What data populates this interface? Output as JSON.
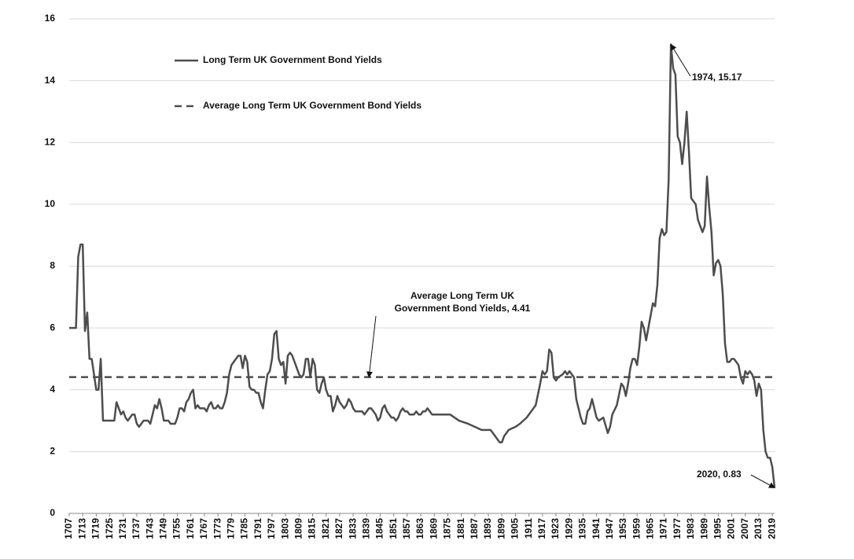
{
  "chart_data": {
    "type": "line",
    "series": [
      {
        "name": "Long Term UK Government Bond Yields",
        "color": "#4d4d4d",
        "x": [
          1707,
          1708,
          1709,
          1710,
          1711,
          1712,
          1713,
          1714,
          1715,
          1716,
          1717,
          1718,
          1719,
          1720,
          1721,
          1722,
          1723,
          1724,
          1725,
          1726,
          1727,
          1728,
          1729,
          1730,
          1731,
          1732,
          1733,
          1734,
          1735,
          1736,
          1737,
          1738,
          1739,
          1740,
          1741,
          1742,
          1743,
          1744,
          1745,
          1746,
          1747,
          1748,
          1749,
          1750,
          1751,
          1752,
          1753,
          1754,
          1755,
          1756,
          1757,
          1758,
          1759,
          1760,
          1761,
          1762,
          1763,
          1764,
          1765,
          1766,
          1767,
          1768,
          1769,
          1770,
          1771,
          1772,
          1773,
          1774,
          1775,
          1776,
          1777,
          1778,
          1779,
          1780,
          1781,
          1782,
          1783,
          1784,
          1785,
          1786,
          1787,
          1788,
          1789,
          1790,
          1791,
          1792,
          1793,
          1794,
          1795,
          1796,
          1797,
          1798,
          1799,
          1800,
          1801,
          1802,
          1803,
          1804,
          1805,
          1806,
          1807,
          1808,
          1809,
          1810,
          1811,
          1812,
          1813,
          1814,
          1815,
          1816,
          1817,
          1818,
          1819,
          1820,
          1821,
          1822,
          1823,
          1824,
          1825,
          1826,
          1827,
          1828,
          1829,
          1830,
          1831,
          1832,
          1833,
          1834,
          1835,
          1836,
          1837,
          1838,
          1839,
          1840,
          1841,
          1842,
          1843,
          1844,
          1845,
          1846,
          1847,
          1848,
          1849,
          1850,
          1851,
          1852,
          1853,
          1854,
          1855,
          1856,
          1857,
          1858,
          1859,
          1860,
          1861,
          1862,
          1863,
          1864,
          1865,
          1866,
          1867,
          1868,
          1869,
          1870,
          1873,
          1876,
          1880,
          1884,
          1887,
          1890,
          1894,
          1897,
          1898,
          1899,
          1900,
          1902,
          1905,
          1907,
          1910,
          1913,
          1914,
          1916,
          1917,
          1918,
          1919,
          1920,
          1921,
          1922,
          1923,
          1924,
          1926,
          1927,
          1928,
          1929,
          1930,
          1931,
          1932,
          1933,
          1934,
          1935,
          1936,
          1937,
          1938,
          1939,
          1940,
          1941,
          1942,
          1944,
          1946,
          1947,
          1948,
          1950,
          1952,
          1953,
          1954,
          1955,
          1956,
          1957,
          1958,
          1959,
          1960,
          1961,
          1962,
          1963,
          1964,
          1965,
          1966,
          1967,
          1968,
          1969,
          1970,
          1971,
          1972,
          1973,
          1974,
          1975,
          1976,
          1977,
          1978,
          1979,
          1980,
          1981,
          1982,
          1983,
          1984,
          1985,
          1986,
          1987,
          1988,
          1989,
          1990,
          1991,
          1992,
          1993,
          1994,
          1995,
          1996,
          1997,
          1998,
          1999,
          2000,
          2001,
          2002,
          2003,
          2004,
          2005,
          2006,
          2007,
          2008,
          2009,
          2010,
          2011,
          2012,
          2013,
          2014,
          2015,
          2016,
          2017,
          2018,
          2019,
          2020
        ],
        "values": [
          6.0,
          6.0,
          6.0,
          6.0,
          8.3,
          8.7,
          8.7,
          5.9,
          6.5,
          5.0,
          5.0,
          4.5,
          4.0,
          4.0,
          5.0,
          3.0,
          3.0,
          3.0,
          3.0,
          3.0,
          3.0,
          3.6,
          3.4,
          3.2,
          3.3,
          3.1,
          3.0,
          3.1,
          3.2,
          3.2,
          2.9,
          2.8,
          2.9,
          3.0,
          3.0,
          3.0,
          2.9,
          3.2,
          3.5,
          3.4,
          3.7,
          3.4,
          3.0,
          3.0,
          3.0,
          2.9,
          2.9,
          2.9,
          3.1,
          3.4,
          3.4,
          3.3,
          3.6,
          3.7,
          3.9,
          4.0,
          3.4,
          3.5,
          3.4,
          3.4,
          3.4,
          3.3,
          3.5,
          3.6,
          3.4,
          3.4,
          3.5,
          3.4,
          3.4,
          3.6,
          3.9,
          4.5,
          4.8,
          4.9,
          5.0,
          5.1,
          5.1,
          4.7,
          5.1,
          4.9,
          4.1,
          4.0,
          4.0,
          3.9,
          3.9,
          3.6,
          3.4,
          4.0,
          4.5,
          4.6,
          5.0,
          5.8,
          5.9,
          5.0,
          4.8,
          4.9,
          4.2,
          5.1,
          5.2,
          5.1,
          4.9,
          4.7,
          4.5,
          4.4,
          4.5,
          5.0,
          5.0,
          4.4,
          5.0,
          4.8,
          4.0,
          3.9,
          4.2,
          4.4,
          4.0,
          3.8,
          3.8,
          3.3,
          3.5,
          3.8,
          3.6,
          3.5,
          3.4,
          3.5,
          3.7,
          3.6,
          3.4,
          3.3,
          3.3,
          3.3,
          3.3,
          3.2,
          3.3,
          3.4,
          3.4,
          3.3,
          3.2,
          3.0,
          3.1,
          3.4,
          3.5,
          3.3,
          3.2,
          3.1,
          3.1,
          3.0,
          3.1,
          3.3,
          3.4,
          3.3,
          3.3,
          3.2,
          3.2,
          3.2,
          3.3,
          3.2,
          3.2,
          3.3,
          3.3,
          3.4,
          3.3,
          3.2,
          3.2,
          3.2,
          3.2,
          3.2,
          3.0,
          2.9,
          2.8,
          2.7,
          2.7,
          2.4,
          2.3,
          2.3,
          2.5,
          2.7,
          2.8,
          2.9,
          3.1,
          3.4,
          3.5,
          4.2,
          4.6,
          4.5,
          4.6,
          5.3,
          5.2,
          4.4,
          4.3,
          4.4,
          4.5,
          4.6,
          4.5,
          4.6,
          4.5,
          4.4,
          3.7,
          3.4,
          3.1,
          2.9,
          2.9,
          3.3,
          3.4,
          3.7,
          3.4,
          3.1,
          3.0,
          3.1,
          2.6,
          2.8,
          3.2,
          3.5,
          4.2,
          4.1,
          3.8,
          4.2,
          4.7,
          5.0,
          5.0,
          4.8,
          5.4,
          6.2,
          6.0,
          5.6,
          6.0,
          6.4,
          6.8,
          6.7,
          7.4,
          8.9,
          9.2,
          9.0,
          9.1,
          10.8,
          15.17,
          14.4,
          14.2,
          12.2,
          12.0,
          11.3,
          12.0,
          13.0,
          11.7,
          10.2,
          10.1,
          10.0,
          9.5,
          9.3,
          9.1,
          9.3,
          10.9,
          9.9,
          9.1,
          7.7,
          8.1,
          8.2,
          8.0,
          7.1,
          5.5,
          4.9,
          4.9,
          5.0,
          5.0,
          4.9,
          4.8,
          4.4,
          4.2,
          4.6,
          4.5,
          4.6,
          4.5,
          4.3,
          3.8,
          4.2,
          4.0,
          2.7,
          2.0,
          1.8,
          1.8,
          1.5,
          0.83
        ]
      }
    ],
    "reference_lines": [
      {
        "name": "Average Long Term UK Government Bond Yields",
        "value": 4.41,
        "style": "dashed",
        "color": "#4d4d4d"
      }
    ],
    "annotations": [
      {
        "text": [
          "1974, 15.17"
        ],
        "x": 1974,
        "y": 15.17
      },
      {
        "text": [
          "2020, 0.83"
        ],
        "x": 2020,
        "y": 0.83
      },
      {
        "text": [
          "Average Long Term UK",
          "Government Bond Yields, 4.41"
        ],
        "x": 1840,
        "y": 4.41
      }
    ],
    "xlim": [
      1707,
      2020
    ],
    "xticks": [
      1707,
      1713,
      1719,
      1725,
      1731,
      1737,
      1743,
      1749,
      1755,
      1761,
      1767,
      1773,
      1779,
      1785,
      1791,
      1797,
      1803,
      1809,
      1815,
      1821,
      1827,
      1833,
      1839,
      1845,
      1851,
      1857,
      1863,
      1869,
      1875,
      1881,
      1887,
      1893,
      1899,
      1905,
      1911,
      1917,
      1923,
      1929,
      1935,
      1941,
      1947,
      1953,
      1959,
      1965,
      1971,
      1977,
      1983,
      1989,
      1995,
      2001,
      2007,
      2013,
      2019
    ],
    "ylim": [
      0,
      16
    ],
    "yticks": [
      0,
      2,
      4,
      6,
      8,
      10,
      12,
      14,
      16
    ],
    "grid": true,
    "legend": "top-left"
  }
}
